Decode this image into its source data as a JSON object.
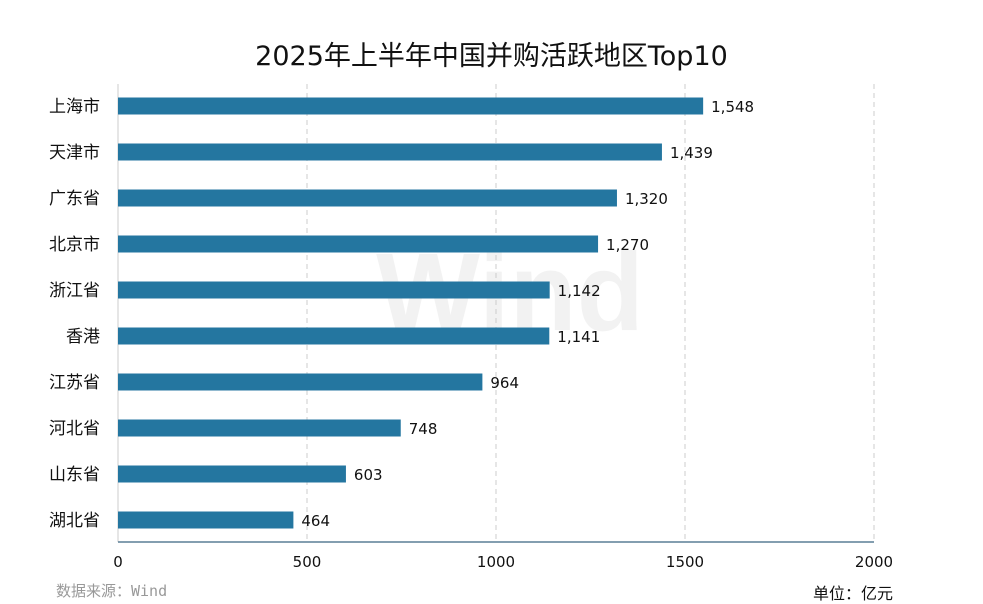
{
  "chart_data": {
    "type": "bar",
    "orientation": "horizontal",
    "title": "2025年上半年中国并购活跃地区Top10",
    "categories": [
      "上海市",
      "天津市",
      "广东省",
      "北京市",
      "浙江省",
      "香港",
      "江苏省",
      "河北省",
      "山东省",
      "湖北省"
    ],
    "values": [
      1548,
      1439,
      1320,
      1270,
      1142,
      1141,
      964,
      748,
      603,
      464
    ],
    "data_labels": [
      "1,548",
      "1,439",
      "1,320",
      "1,270",
      "1,142",
      "1,141",
      "964",
      "748",
      "603",
      "464"
    ],
    "xlim": [
      0,
      2000
    ],
    "xticks": [
      "0",
      "500",
      "1000",
      "1500",
      "2000"
    ],
    "grid": "vertical dashed",
    "bar_color": "#2476a0",
    "source": "数据来源：Wind",
    "unit": "单位：亿元",
    "watermark": "Wind"
  }
}
